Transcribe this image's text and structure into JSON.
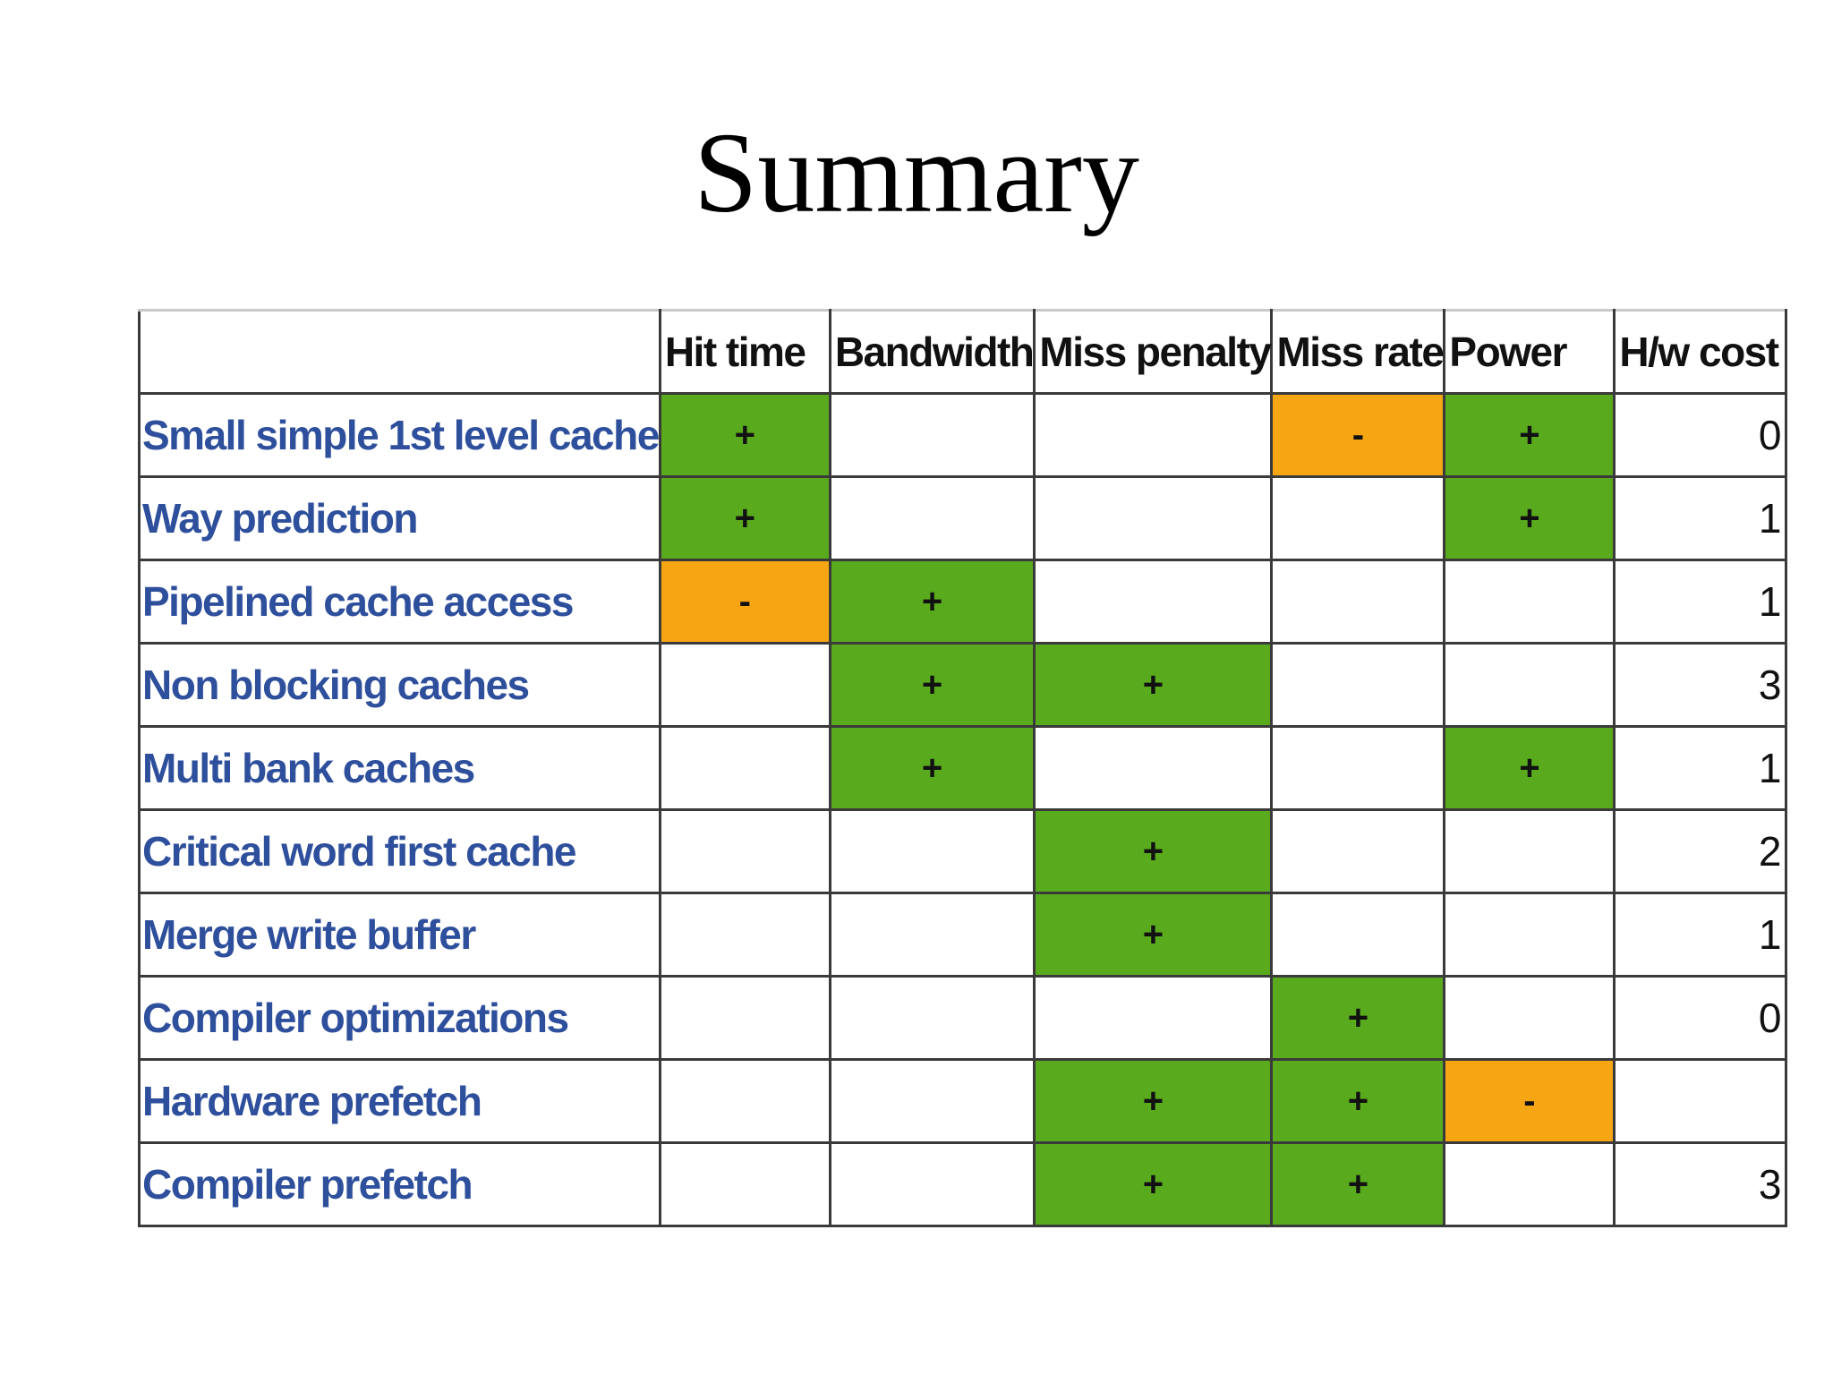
{
  "title": "Summary",
  "colors": {
    "positive": "#5aaa1e",
    "negative": "#f5a612",
    "row_label": "#2e4f9c"
  },
  "table": {
    "headers": [
      "",
      "Hit time",
      "Bandwidth",
      "Miss penalty",
      "Miss rate",
      "Power",
      "H/w cost"
    ],
    "rows": [
      {
        "label": "Small simple 1st level cache",
        "cells": [
          "+",
          "",
          "",
          "-",
          "+"
        ],
        "cost": "0"
      },
      {
        "label": "Way prediction",
        "cells": [
          "+",
          "",
          "",
          "",
          "+"
        ],
        "cost": "1"
      },
      {
        "label": "Pipelined cache access",
        "cells": [
          "-",
          "+",
          "",
          "",
          ""
        ],
        "cost": "1"
      },
      {
        "label": "Non blocking caches",
        "cells": [
          "",
          "+",
          "+",
          "",
          ""
        ],
        "cost": "3"
      },
      {
        "label": "Multi bank caches",
        "cells": [
          "",
          "+",
          "",
          "",
          "+"
        ],
        "cost": "1"
      },
      {
        "label": "Critical word first cache",
        "cells": [
          "",
          "",
          "+",
          "",
          ""
        ],
        "cost": "2"
      },
      {
        "label": "Merge write buffer",
        "cells": [
          "",
          "",
          "+",
          "",
          ""
        ],
        "cost": "1"
      },
      {
        "label": "Compiler optimizations",
        "cells": [
          "",
          "",
          "",
          "+",
          ""
        ],
        "cost": "0"
      },
      {
        "label": "Hardware prefetch",
        "cells": [
          "",
          "",
          "+",
          "+",
          "-"
        ],
        "cost": ""
      },
      {
        "label": "Compiler prefetch",
        "cells": [
          "",
          "",
          "+",
          "+",
          ""
        ],
        "cost": "3"
      }
    ]
  }
}
